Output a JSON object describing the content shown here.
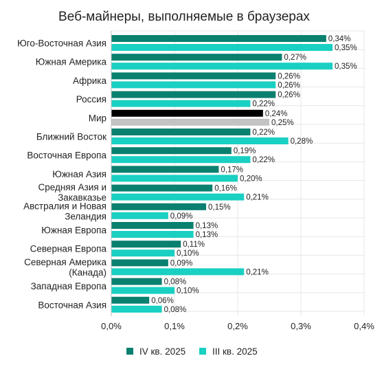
{
  "colors": {
    "q4": "#0a806f",
    "q3": "#19d0c2",
    "world_q4": "#000000",
    "world_q3": "#c3c3c3",
    "background": "#ffffff"
  },
  "chart_data": {
    "type": "bar",
    "orientation": "horizontal",
    "title": "Веб-майнеры, выполняемые в браузерах",
    "categories": [
      "Юго-Восточная Азия",
      "Южная Америка",
      "Африка",
      "Россия",
      "Мир",
      "Ближний Восток",
      "Восточная Европа",
      "Южная Азия",
      "Средняя Азия и Закавказье",
      "Австралия и Новая Зеландия",
      "Южная Европа",
      "Северная Европа",
      "Северная Америка (Канада)",
      "Западная Европа",
      "Восточная Азия"
    ],
    "series": [
      {
        "name": "IV кв. 2025",
        "values": [
          0.34,
          0.27,
          0.26,
          0.26,
          0.24,
          0.22,
          0.19,
          0.17,
          0.16,
          0.15,
          0.13,
          0.11,
          0.09,
          0.08,
          0.06
        ]
      },
      {
        "name": "III кв. 2025",
        "values": [
          0.35,
          0.35,
          0.26,
          0.22,
          0.25,
          0.28,
          0.22,
          0.2,
          0.21,
          0.09,
          0.13,
          0.1,
          0.21,
          0.1,
          0.08
        ]
      }
    ],
    "value_labels": {
      "IV кв. 2025": [
        "0,34%",
        "0,27%",
        "0,26%",
        "0,26%",
        "0,24%",
        "0,22%",
        "0,19%",
        "0,17%",
        "0,16%",
        "0,15%",
        "0,13%",
        "0,11%",
        "0,09%",
        "0,08%",
        "0,06%"
      ],
      "III кв. 2025": [
        "0,35%",
        "0,35%",
        "0,26%",
        "0,22%",
        "0,25%",
        "0,28%",
        "0,22%",
        "0,20%",
        "0,21%",
        "0,09%",
        "0,13%",
        "0,10%",
        "0,21%",
        "0,10%",
        "0,08%"
      ]
    },
    "xlim": [
      0,
      0.4
    ],
    "x_ticks": [
      0,
      0.1,
      0.2,
      0.3,
      0.4
    ],
    "x_tick_labels": [
      "0,0%",
      "0,1%",
      "0,2%",
      "0,3%",
      "0,4%"
    ],
    "grid": true,
    "legend_position": "bottom",
    "highlighted_category": "Мир"
  }
}
